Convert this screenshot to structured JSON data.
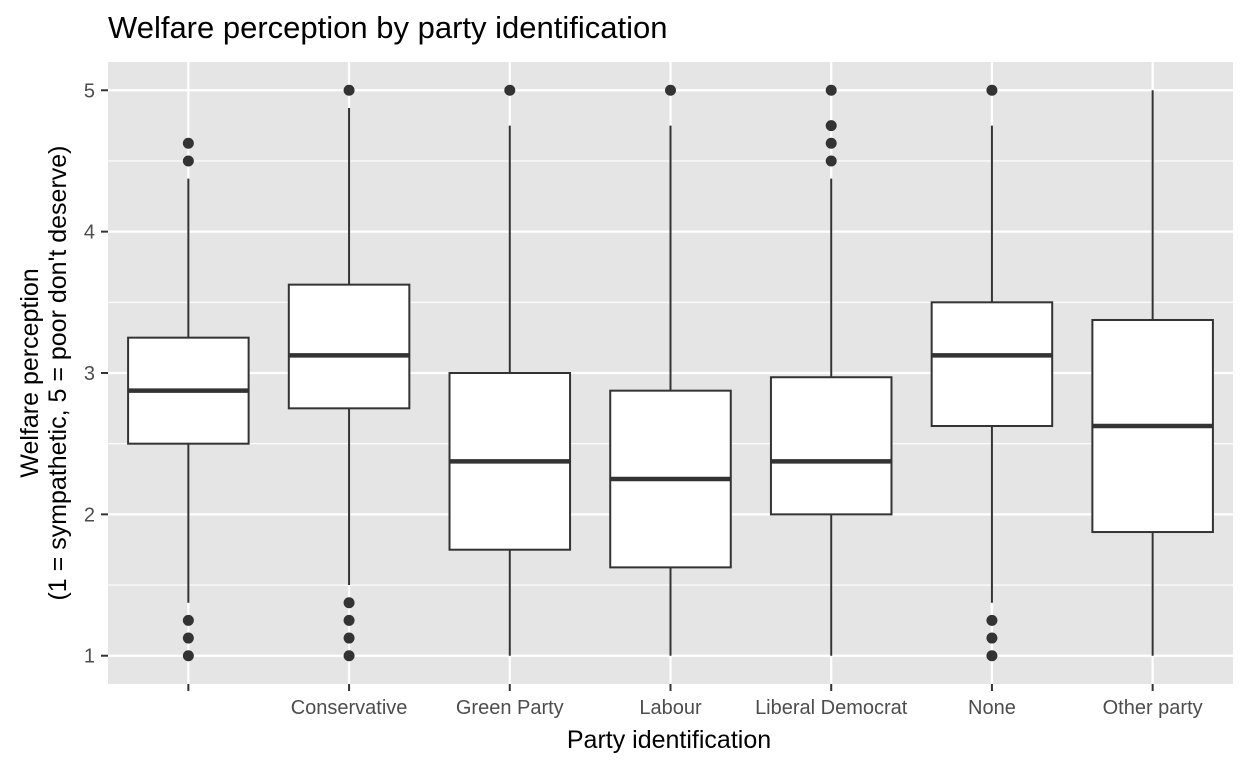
{
  "chart_data": {
    "type": "boxplot",
    "title": "Welfare perception by party identification",
    "xlabel": "Party identification",
    "ylabel_line1": "Welfare perception",
    "ylabel_line2": "(1 = sympathetic, 5 = poor don't deserve)",
    "ylim": [
      0.8,
      5.2
    ],
    "y_ticks": [
      1,
      2,
      3,
      4,
      5
    ],
    "y_tick_labels": [
      "1",
      "2",
      "3",
      "4",
      "5"
    ],
    "grid": true,
    "categories": [
      "",
      "Conservative",
      "Green Party",
      "Labour",
      "Liberal Democrat",
      "None",
      "Other party"
    ],
    "boxes": [
      {
        "category": "",
        "whisker_low": 1.375,
        "q1": 2.5,
        "median": 2.875,
        "q3": 3.25,
        "whisker_high": 4.375,
        "outliers": [
          1.0,
          1.125,
          1.25,
          4.5,
          4.625
        ]
      },
      {
        "category": "Conservative",
        "whisker_low": 1.5,
        "q1": 2.75,
        "median": 3.125,
        "q3": 3.625,
        "whisker_high": 4.875,
        "outliers": [
          1.0,
          1.125,
          1.25,
          1.375,
          5.0
        ]
      },
      {
        "category": "Green Party",
        "whisker_low": 1.0,
        "q1": 1.75,
        "median": 2.375,
        "q3": 3.0,
        "whisker_high": 4.75,
        "outliers": [
          5.0
        ]
      },
      {
        "category": "Labour",
        "whisker_low": 1.0,
        "q1": 1.625,
        "median": 2.25,
        "q3": 2.875,
        "whisker_high": 4.75,
        "outliers": [
          5.0
        ]
      },
      {
        "category": "Liberal Democrat",
        "whisker_low": 1.0,
        "q1": 2.0,
        "median": 2.375,
        "q3": 2.97,
        "whisker_high": 4.375,
        "outliers": [
          4.5,
          4.625,
          4.75,
          5.0
        ]
      },
      {
        "category": "None",
        "whisker_low": 1.375,
        "q1": 2.625,
        "median": 3.125,
        "q3": 3.5,
        "whisker_high": 4.75,
        "outliers": [
          1.0,
          1.125,
          1.25,
          5.0
        ]
      },
      {
        "category": "Other party",
        "whisker_low": 1.0,
        "q1": 1.875,
        "median": 2.625,
        "q3": 3.375,
        "whisker_high": 5.0,
        "outliers": []
      }
    ],
    "colors": {
      "panel": "#e5e5e5",
      "grid": "#ffffff",
      "box_fill": "#ffffff",
      "stroke": "#333333",
      "outlier": "#333333",
      "tick_text": "#4d4d4d"
    }
  }
}
